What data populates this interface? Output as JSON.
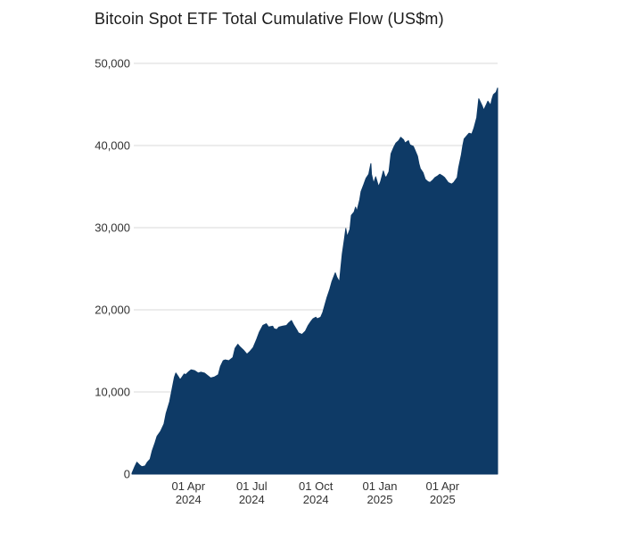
{
  "chart": {
    "title": "Bitcoin Spot ETF Total Cumulative Flow (US$m)"
  },
  "chart_data": {
    "type": "area",
    "title": "Bitcoin Spot ETF Total Cumulative Flow (US$m)",
    "xlabel": "",
    "ylabel": "",
    "legend": "none",
    "grid": "horizontal-only",
    "ylim": [
      0,
      50000
    ],
    "y_ticks": [
      0,
      10000,
      20000,
      30000,
      40000,
      50000
    ],
    "y_tick_labels": [
      "0",
      "10,000",
      "20,000",
      "30,000",
      "40,000",
      "50,000"
    ],
    "x_ticks": [
      {
        "date": "2024-04-01",
        "line1": "01 Apr",
        "line2": "2024"
      },
      {
        "date": "2024-07-01",
        "line1": "01 Jul",
        "line2": "2024"
      },
      {
        "date": "2024-10-01",
        "line1": "01 Oct",
        "line2": "2024"
      },
      {
        "date": "2025-01-01",
        "line1": "01 Jan",
        "line2": "2025"
      },
      {
        "date": "2025-04-01",
        "line1": "01 Apr",
        "line2": "2025"
      }
    ],
    "x_range": [
      "2024-01-11",
      "2025-06-19"
    ],
    "colors": {
      "area_fill": "#0e3a66",
      "gridline": "#d9d9d9",
      "tick_label": "#333333",
      "title": "#1a1a1a",
      "background": "#ffffff"
    },
    "series": [
      {
        "name": "Total Cumulative Flow (US$m)",
        "points": [
          [
            "2024-01-11",
            100
          ],
          [
            "2024-01-15",
            900
          ],
          [
            "2024-01-18",
            1450
          ],
          [
            "2024-01-22",
            1100
          ],
          [
            "2024-01-25",
            900
          ],
          [
            "2024-01-30",
            1000
          ],
          [
            "2024-02-02",
            1450
          ],
          [
            "2024-02-06",
            1800
          ],
          [
            "2024-02-09",
            2800
          ],
          [
            "2024-02-13",
            3800
          ],
          [
            "2024-02-16",
            4600
          ],
          [
            "2024-02-21",
            5200
          ],
          [
            "2024-02-26",
            6100
          ],
          [
            "2024-02-29",
            7400
          ],
          [
            "2024-03-05",
            8800
          ],
          [
            "2024-03-08",
            10100
          ],
          [
            "2024-03-12",
            11800
          ],
          [
            "2024-03-14",
            12300
          ],
          [
            "2024-03-18",
            11800
          ],
          [
            "2024-03-20",
            11500
          ],
          [
            "2024-03-22",
            11700
          ],
          [
            "2024-03-26",
            12200
          ],
          [
            "2024-03-28",
            12100
          ],
          [
            "2024-04-02",
            12500
          ],
          [
            "2024-04-05",
            12700
          ],
          [
            "2024-04-10",
            12600
          ],
          [
            "2024-04-15",
            12300
          ],
          [
            "2024-04-19",
            12400
          ],
          [
            "2024-04-24",
            12300
          ],
          [
            "2024-04-30",
            11900
          ],
          [
            "2024-05-03",
            11700
          ],
          [
            "2024-05-08",
            11800
          ],
          [
            "2024-05-14",
            12100
          ],
          [
            "2024-05-17",
            13100
          ],
          [
            "2024-05-21",
            13800
          ],
          [
            "2024-05-24",
            13900
          ],
          [
            "2024-05-29",
            13800
          ],
          [
            "2024-06-04",
            14200
          ],
          [
            "2024-06-07",
            15300
          ],
          [
            "2024-06-11",
            15800
          ],
          [
            "2024-06-14",
            15500
          ],
          [
            "2024-06-19",
            15100
          ],
          [
            "2024-06-24",
            14600
          ],
          [
            "2024-06-28",
            14900
          ],
          [
            "2024-07-03",
            15400
          ],
          [
            "2024-07-08",
            16400
          ],
          [
            "2024-07-12",
            17300
          ],
          [
            "2024-07-17",
            18100
          ],
          [
            "2024-07-22",
            18300
          ],
          [
            "2024-07-25",
            17900
          ],
          [
            "2024-07-31",
            18000
          ],
          [
            "2024-08-02",
            17700
          ],
          [
            "2024-08-06",
            17600
          ],
          [
            "2024-08-09",
            17900
          ],
          [
            "2024-08-14",
            18000
          ],
          [
            "2024-08-20",
            18100
          ],
          [
            "2024-08-23",
            18400
          ],
          [
            "2024-08-27",
            18700
          ],
          [
            "2024-08-30",
            18200
          ],
          [
            "2024-09-04",
            17500
          ],
          [
            "2024-09-06",
            17200
          ],
          [
            "2024-09-11",
            17000
          ],
          [
            "2024-09-16",
            17400
          ],
          [
            "2024-09-20",
            18100
          ],
          [
            "2024-09-24",
            18600
          ],
          [
            "2024-09-27",
            18900
          ],
          [
            "2024-10-01",
            19100
          ],
          [
            "2024-10-03",
            18900
          ],
          [
            "2024-10-08",
            19100
          ],
          [
            "2024-10-11",
            19700
          ],
          [
            "2024-10-15",
            20900
          ],
          [
            "2024-10-17",
            21500
          ],
          [
            "2024-10-21",
            22500
          ],
          [
            "2024-10-24",
            23400
          ],
          [
            "2024-10-29",
            24500
          ],
          [
            "2024-10-31",
            24000
          ],
          [
            "2024-11-04",
            23400
          ],
          [
            "2024-11-06",
            25200
          ],
          [
            "2024-11-08",
            26800
          ],
          [
            "2024-11-11",
            28600
          ],
          [
            "2024-11-13",
            29900
          ],
          [
            "2024-11-15",
            28900
          ],
          [
            "2024-11-19",
            29800
          ],
          [
            "2024-11-21",
            31500
          ],
          [
            "2024-11-25",
            31900
          ],
          [
            "2024-11-27",
            32500
          ],
          [
            "2024-11-29",
            32000
          ],
          [
            "2024-12-03",
            33400
          ],
          [
            "2024-12-05",
            34400
          ],
          [
            "2024-12-09",
            35300
          ],
          [
            "2024-12-12",
            36000
          ],
          [
            "2024-12-16",
            36500
          ],
          [
            "2024-12-19",
            37800
          ],
          [
            "2024-12-20",
            36500
          ],
          [
            "2024-12-23",
            35400
          ],
          [
            "2024-12-26",
            36200
          ],
          [
            "2024-12-30",
            35000
          ],
          [
            "2025-01-02",
            35600
          ],
          [
            "2025-01-06",
            36900
          ],
          [
            "2025-01-08",
            36300
          ],
          [
            "2025-01-10",
            36100
          ],
          [
            "2025-01-14",
            36800
          ],
          [
            "2025-01-17",
            39000
          ],
          [
            "2025-01-21",
            39800
          ],
          [
            "2025-01-24",
            40300
          ],
          [
            "2025-01-28",
            40600
          ],
          [
            "2025-01-31",
            41000
          ],
          [
            "2025-02-04",
            40700
          ],
          [
            "2025-02-06",
            40300
          ],
          [
            "2025-02-11",
            40600
          ],
          [
            "2025-02-13",
            40100
          ],
          [
            "2025-02-18",
            39900
          ],
          [
            "2025-02-20",
            39500
          ],
          [
            "2025-02-24",
            38700
          ],
          [
            "2025-02-26",
            37800
          ],
          [
            "2025-02-28",
            37200
          ],
          [
            "2025-03-04",
            36700
          ],
          [
            "2025-03-07",
            35900
          ],
          [
            "2025-03-11",
            35600
          ],
          [
            "2025-03-14",
            35500
          ],
          [
            "2025-03-18",
            35800
          ],
          [
            "2025-03-21",
            36100
          ],
          [
            "2025-03-25",
            36300
          ],
          [
            "2025-03-28",
            36500
          ],
          [
            "2025-04-01",
            36300
          ],
          [
            "2025-04-04",
            36100
          ],
          [
            "2025-04-09",
            35500
          ],
          [
            "2025-04-14",
            35300
          ],
          [
            "2025-04-17",
            35500
          ],
          [
            "2025-04-22",
            36100
          ],
          [
            "2025-04-24",
            37300
          ],
          [
            "2025-04-28",
            38900
          ],
          [
            "2025-04-30",
            40000
          ],
          [
            "2025-05-02",
            40800
          ],
          [
            "2025-05-06",
            41200
          ],
          [
            "2025-05-09",
            41500
          ],
          [
            "2025-05-13",
            41400
          ],
          [
            "2025-05-16",
            42100
          ],
          [
            "2025-05-20",
            43400
          ],
          [
            "2025-05-22",
            44900
          ],
          [
            "2025-05-23",
            45700
          ],
          [
            "2025-05-28",
            44800
          ],
          [
            "2025-05-30",
            44300
          ],
          [
            "2025-06-03",
            45000
          ],
          [
            "2025-06-05",
            45400
          ],
          [
            "2025-06-09",
            44900
          ],
          [
            "2025-06-11",
            45700
          ],
          [
            "2025-06-13",
            46200
          ],
          [
            "2025-06-17",
            46500
          ],
          [
            "2025-06-19",
            47000
          ]
        ]
      }
    ]
  }
}
